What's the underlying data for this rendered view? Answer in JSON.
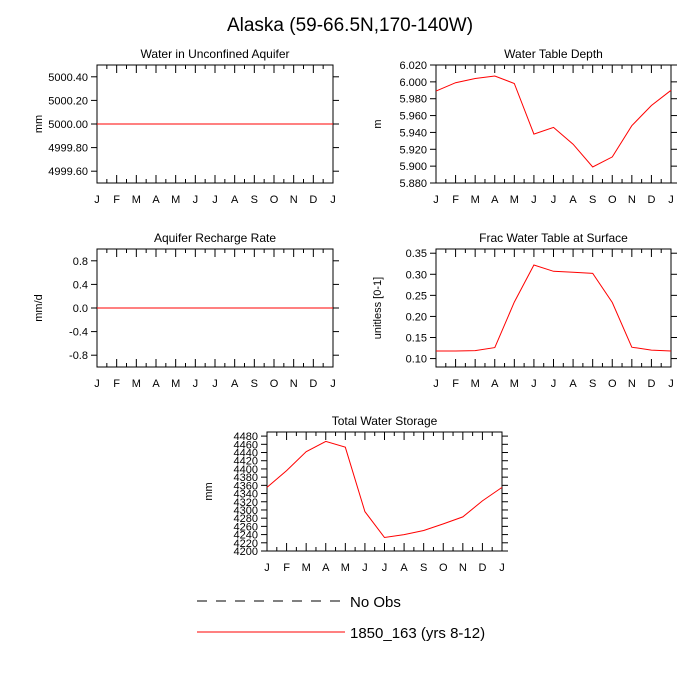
{
  "title": "Alaska (59-66.5N,170-140W)",
  "chart_data": [
    {
      "type": "line",
      "title": "Water in Unconfined Aquifer",
      "ylabel": "mm",
      "xlabel": "",
      "categories": [
        "J",
        "F",
        "M",
        "A",
        "M",
        "J",
        "J",
        "A",
        "S",
        "O",
        "N",
        "D",
        "J"
      ],
      "ylim": [
        4999.5,
        5000.5
      ],
      "yticks": [
        4999.6,
        4999.8,
        5000.0,
        5000.2,
        5000.4
      ],
      "ytick_labels": [
        "4999.60",
        "4999.80",
        "5000.00",
        "5000.20",
        "5000.40"
      ],
      "series": [
        {
          "name": "1850_163 (yrs 8-12)",
          "values": [
            5000,
            5000,
            5000,
            5000,
            5000,
            5000,
            5000,
            5000,
            5000,
            5000,
            5000,
            5000,
            5000
          ]
        }
      ]
    },
    {
      "type": "line",
      "title": "Water Table Depth",
      "ylabel": "m",
      "xlabel": "",
      "categories": [
        "J",
        "F",
        "M",
        "A",
        "M",
        "J",
        "J",
        "A",
        "S",
        "O",
        "N",
        "D",
        "J"
      ],
      "ylim": [
        5.88,
        6.02
      ],
      "yticks": [
        5.88,
        5.9,
        5.92,
        5.94,
        5.96,
        5.98,
        6.0,
        6.02
      ],
      "ytick_labels": [
        "5.880",
        "5.900",
        "5.920",
        "5.940",
        "5.960",
        "5.980",
        "6.000",
        "6.020"
      ],
      "series": [
        {
          "name": "1850_163 (yrs 8-12)",
          "values": [
            5.989,
            5.999,
            6.004,
            6.007,
            5.998,
            5.938,
            5.946,
            5.926,
            5.899,
            5.911,
            5.948,
            5.972,
            5.99
          ]
        }
      ]
    },
    {
      "type": "line",
      "title": "Aquifer Recharge Rate",
      "ylabel": "mm/d",
      "xlabel": "",
      "categories": [
        "J",
        "F",
        "M",
        "A",
        "M",
        "J",
        "J",
        "A",
        "S",
        "O",
        "N",
        "D",
        "J"
      ],
      "ylim": [
        -1.0,
        1.0
      ],
      "yticks": [
        -0.8,
        -0.4,
        0.0,
        0.4,
        0.8
      ],
      "ytick_labels": [
        "-0.8",
        "-0.4",
        "0.0",
        "0.4",
        "0.8"
      ],
      "series": [
        {
          "name": "1850_163 (yrs 8-12)",
          "values": [
            0,
            0,
            0,
            0,
            0,
            0,
            0,
            0,
            0,
            0,
            0,
            0,
            0
          ]
        }
      ]
    },
    {
      "type": "line",
      "title": "Frac Water Table at Surface",
      "ylabel": "unitless [0-1]",
      "xlabel": "",
      "categories": [
        "J",
        "F",
        "M",
        "A",
        "M",
        "J",
        "J",
        "A",
        "S",
        "O",
        "N",
        "D",
        "J"
      ],
      "ylim": [
        0.08,
        0.36
      ],
      "yticks": [
        0.1,
        0.15,
        0.2,
        0.25,
        0.3,
        0.35
      ],
      "ytick_labels": [
        "0.10",
        "0.15",
        "0.20",
        "0.25",
        "0.30",
        "0.35"
      ],
      "series": [
        {
          "name": "1850_163 (yrs 8-12)",
          "values": [
            0.118,
            0.118,
            0.119,
            0.126,
            0.234,
            0.322,
            0.307,
            0.305,
            0.302,
            0.233,
            0.127,
            0.12,
            0.118
          ]
        }
      ]
    },
    {
      "type": "line",
      "title": "Total Water Storage",
      "ylabel": "mm",
      "xlabel": "",
      "categories": [
        "J",
        "F",
        "M",
        "A",
        "M",
        "J",
        "J",
        "A",
        "S",
        "O",
        "N",
        "D",
        "J"
      ],
      "ylim": [
        4200,
        4490
      ],
      "yticks": [
        4200,
        4220,
        4240,
        4260,
        4280,
        4300,
        4320,
        4340,
        4360,
        4380,
        4400,
        4420,
        4440,
        4460,
        4480
      ],
      "ytick_labels": [
        "4200",
        "4220",
        "4240",
        "4260",
        "4280",
        "4300",
        "4320",
        "4340",
        "4360",
        "4380",
        "4400",
        "4420",
        "4440",
        "4460",
        "4480"
      ],
      "series": [
        {
          "name": "1850_163 (yrs 8-12)",
          "values": [
            4355,
            4396,
            4442,
            4467,
            4453,
            4296,
            4233,
            4240,
            4250,
            4266,
            4283,
            4322,
            4355
          ]
        }
      ]
    }
  ],
  "legend": {
    "entries": [
      {
        "label": "No Obs",
        "style": "dashed",
        "color": "#000000"
      },
      {
        "label": "1850_163 (yrs 8-12)",
        "style": "solid",
        "color": "#ff0000"
      }
    ]
  },
  "colors": {
    "series": "#ff0000",
    "axis": "#000000"
  }
}
